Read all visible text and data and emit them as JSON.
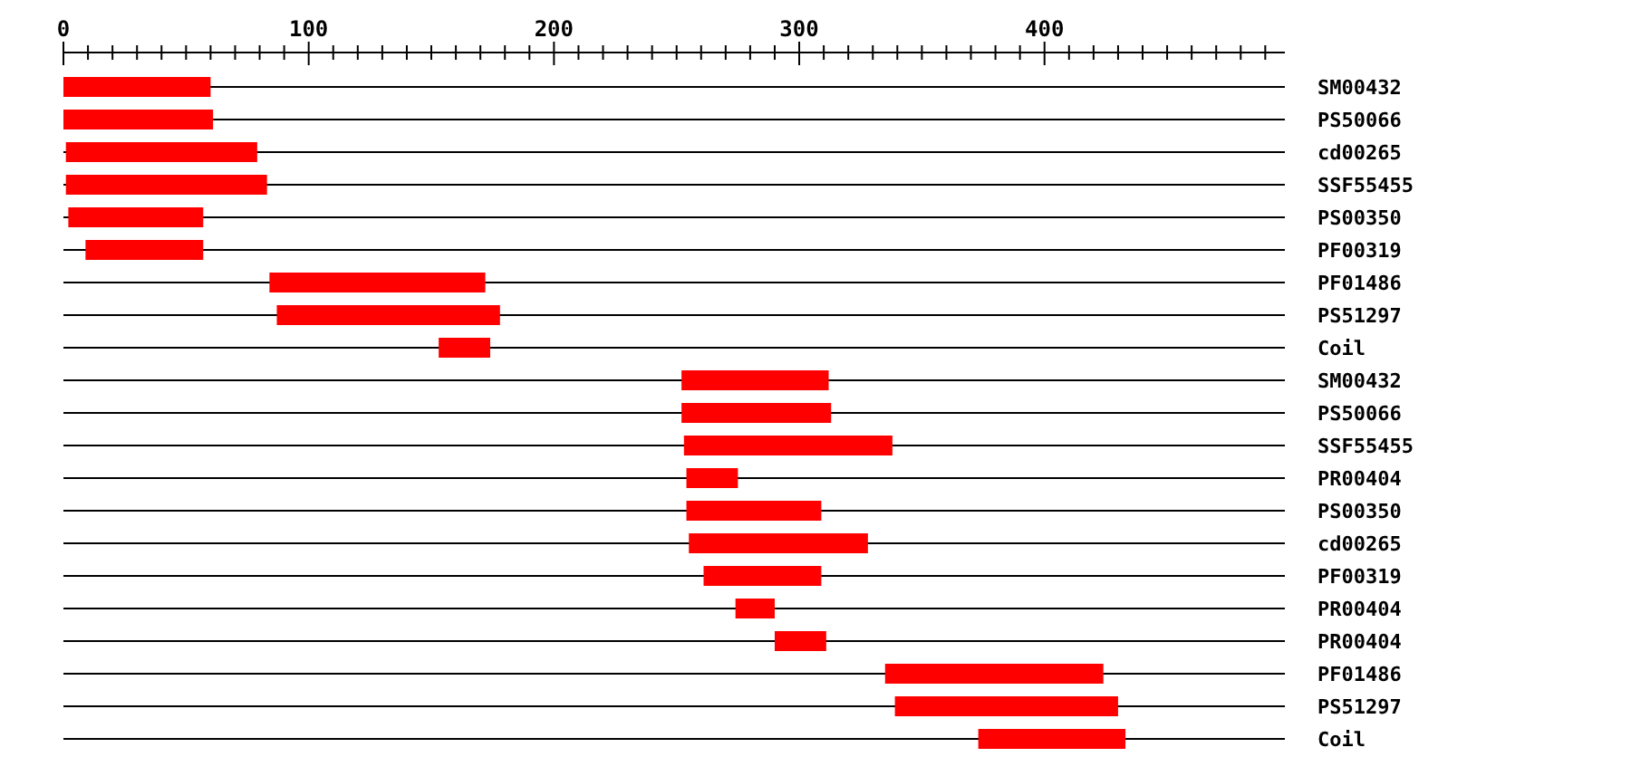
{
  "chart_data": {
    "type": "bar",
    "orientation": "horizontal",
    "grid": "y",
    "categories": [
      "SM00432",
      "PS50066",
      "cd00265",
      "SSF55455",
      "PS00350",
      "PF00319",
      "PF01486",
      "PS51297",
      "Coil",
      "SM00432",
      "PS50066",
      "SSF55455",
      "PR00404",
      "PS00350",
      "cd00265",
      "PF00319",
      "PR00404",
      "PR00404",
      "PF01486",
      "PS51297",
      "Coil"
    ],
    "base": [
      0,
      0,
      1,
      1,
      2,
      9,
      84,
      87,
      153,
      252,
      252,
      253,
      254,
      254,
      255,
      261,
      274,
      290,
      335,
      339,
      373
    ],
    "values": [
      60,
      61,
      78,
      82,
      55,
      48,
      88,
      91,
      21,
      60,
      61,
      85,
      21,
      55,
      73,
      48,
      16,
      21,
      89,
      91,
      60
    ],
    "color": "#ff0000",
    "xlim": [
      0,
      498
    ],
    "xticks": [
      0,
      {
        "value": 10,
        "label": null
      },
      {
        "value": 20,
        "label": null
      },
      {
        "value": 30,
        "label": null
      },
      {
        "value": 40,
        "label": null
      },
      {
        "value": 50,
        "label": null
      },
      {
        "value": 60,
        "label": null
      },
      {
        "value": 70,
        "label": null
      },
      {
        "value": 80,
        "label": null
      },
      {
        "value": 90,
        "label": null
      },
      100,
      {
        "value": 110,
        "label": null
      },
      {
        "value": 120,
        "label": null
      },
      {
        "value": 130,
        "label": null
      },
      {
        "value": 140,
        "label": null
      },
      {
        "value": 150,
        "label": null
      },
      {
        "value": 160,
        "label": null
      },
      {
        "value": 170,
        "label": null
      },
      {
        "value": 180,
        "label": null
      },
      {
        "value": 190,
        "label": null
      },
      200,
      {
        "value": 210,
        "label": null
      },
      {
        "value": 220,
        "label": null
      },
      {
        "value": 230,
        "label": null
      },
      {
        "value": 240,
        "label": null
      },
      {
        "value": 250,
        "label": null
      },
      {
        "value": 260,
        "label": null
      },
      {
        "value": 270,
        "label": null
      },
      {
        "value": 280,
        "label": null
      },
      {
        "value": 290,
        "label": null
      },
      300,
      {
        "value": 310,
        "label": null
      },
      {
        "value": 320,
        "label": null
      },
      {
        "value": 330,
        "label": null
      },
      {
        "value": 340,
        "label": null
      },
      {
        "value": 350,
        "label": null
      },
      {
        "value": 360,
        "label": null
      },
      {
        "value": 370,
        "label": null
      },
      {
        "value": 380,
        "label": null
      },
      {
        "value": 390,
        "label": null
      },
      400,
      {
        "value": 410,
        "label": null
      },
      {
        "value": 420,
        "label": null
      },
      {
        "value": 430,
        "label": null
      },
      {
        "value": 440,
        "label": null
      },
      {
        "value": 450,
        "label": null
      },
      {
        "value": 460,
        "label": null
      },
      {
        "value": 470,
        "label": null
      },
      {
        "value": 480,
        "label": null
      },
      {
        "value": 490,
        "label": null
      }
    ]
  }
}
